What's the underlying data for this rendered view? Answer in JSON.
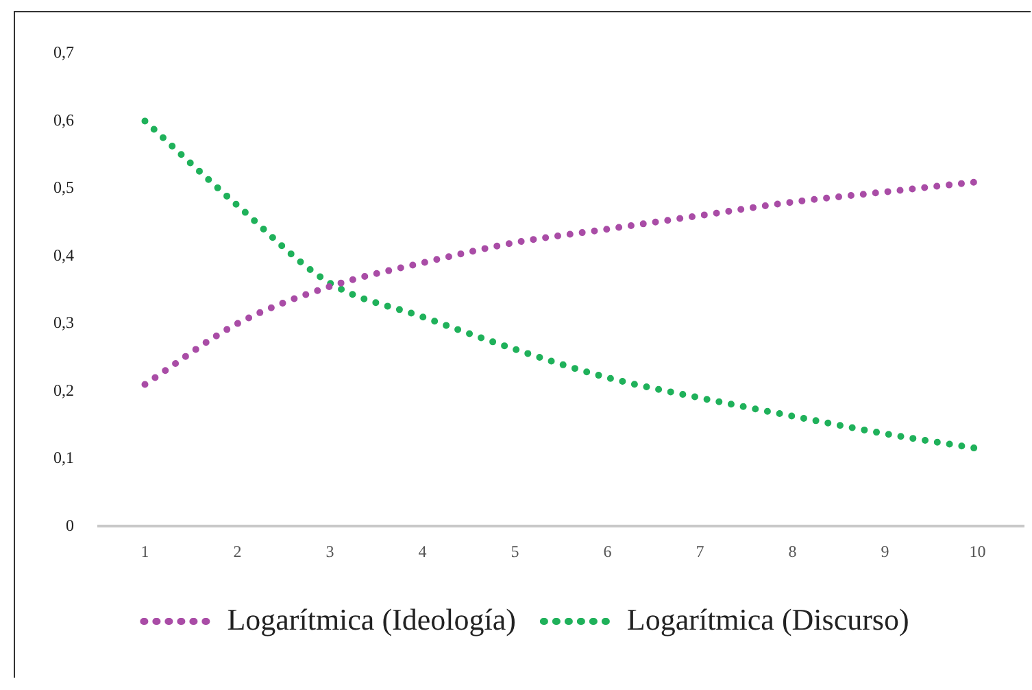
{
  "chart_data": {
    "type": "line",
    "categories": [
      "1",
      "2",
      "3",
      "4",
      "5",
      "6",
      "7",
      "8",
      "9",
      "10"
    ],
    "series": [
      {
        "name": "Logarítmica (Ideología)",
        "color": "#a94ca6",
        "values": [
          0.21,
          0.3,
          0.355,
          0.39,
          0.42,
          0.44,
          0.46,
          0.48,
          0.495,
          0.51
        ]
      },
      {
        "name": "Logarítmica (Discurso)",
        "color": "#1fb15a",
        "values": [
          0.6,
          0.475,
          0.36,
          0.31,
          0.262,
          0.22,
          0.19,
          0.163,
          0.137,
          0.115
        ]
      }
    ],
    "ylim": [
      0,
      0.7
    ],
    "yticks": [
      {
        "value": 0,
        "label": "0"
      },
      {
        "value": 0.1,
        "label": "0,1"
      },
      {
        "value": 0.2,
        "label": "0,2"
      },
      {
        "value": 0.3,
        "label": "0,3"
      },
      {
        "value": 0.4,
        "label": "0,4"
      },
      {
        "value": 0.5,
        "label": "0,5"
      },
      {
        "value": 0.6,
        "label": "0,6"
      },
      {
        "value": 0.7,
        "label": "0,7"
      }
    ],
    "grid": false,
    "legend": "bottom",
    "marker": "none",
    "line_style": "dotted"
  }
}
